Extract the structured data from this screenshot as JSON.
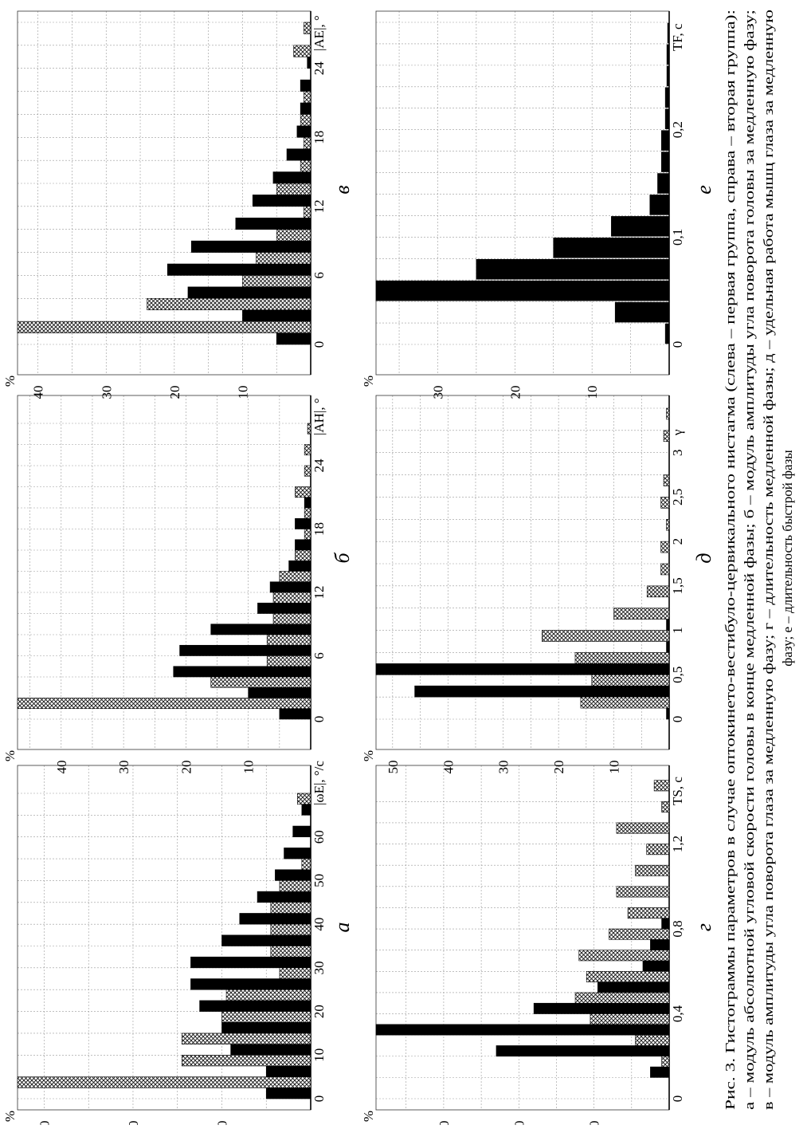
{
  "caption": {
    "lines": [
      "Рис. 3. Гистограммы параметров в случае оптокинето-вестибуло-цервикального нистагма (слева – первая группа, справа – вторая группа):",
      "а – модуль абсолютной угловой скорости головы в конце медленной фазы; б – модуль амплитуды угла поворота головы за медленную фазу;",
      "в – модуль амплитуды угла поворота глаза за медленную фазу; г – длительность медленной фазы; д – удельная работа мышц глаза за медленную",
      "фазу; е – длительность быстрой фазы"
    ]
  },
  "colors": {
    "group1": "#000000",
    "group2_pattern": "crosshatch",
    "grid": "#888888"
  },
  "chart_data": [
    {
      "id": "a",
      "label": "а",
      "type": "bar",
      "ylabel": "%",
      "xlabel": "|ωE|, °/с",
      "xlim": [
        0,
        70
      ],
      "ylim": [
        0,
        33
      ],
      "grid": true,
      "xticks": [
        0,
        10,
        20,
        30,
        40,
        50,
        60
      ],
      "xtick_labels": [
        "0",
        "10",
        "20",
        "30",
        "40",
        "50",
        "60"
      ],
      "yticks": [
        10,
        20,
        30
      ],
      "ytick_labels": [
        "10",
        "20",
        "30"
      ],
      "bin_width": 5,
      "series": [
        {
          "style": "solid",
          "x": [
            0,
            5,
            10,
            15,
            20,
            25,
            30,
            35,
            40,
            45,
            50,
            55,
            60,
            65
          ],
          "values": [
            5,
            5,
            9,
            10,
            12.5,
            13.5,
            13.5,
            10,
            8,
            6,
            4,
            3,
            2,
            1
          ]
        },
        {
          "style": "hatch",
          "x": [
            0,
            5,
            10,
            15,
            20,
            25,
            30,
            35,
            40,
            45,
            50,
            55,
            60,
            65
          ],
          "values": [
            36,
            14.5,
            14.5,
            10,
            9.5,
            3.5,
            4.5,
            4.5,
            4.5,
            3.5,
            1,
            0,
            0,
            1.5
          ]
        }
      ]
    },
    {
      "id": "b",
      "label": "б",
      "type": "bar",
      "ylabel": "%",
      "xlabel": "|AH|, °",
      "xlim": [
        0,
        28
      ],
      "ylim": [
        0,
        47
      ],
      "grid": true,
      "xticks": [
        0,
        6,
        12,
        18,
        24
      ],
      "xtick_labels": [
        "0",
        "6",
        "12",
        "18",
        "24"
      ],
      "yticks": [
        10,
        20,
        30,
        40
      ],
      "ytick_labels": [
        "10",
        "20",
        "30",
        "40"
      ],
      "bin_width": 2,
      "series": [
        {
          "style": "solid",
          "x": [
            0,
            2,
            4,
            6,
            8,
            10,
            12,
            14,
            16,
            18,
            20,
            22,
            24,
            26
          ],
          "values": [
            5,
            10,
            22,
            21,
            16,
            8.5,
            6.5,
            3.5,
            2.5,
            2.5,
            1,
            0,
            0,
            0
          ]
        },
        {
          "style": "hatch",
          "x": [
            0,
            2,
            4,
            6,
            8,
            10,
            12,
            14,
            16,
            18,
            20,
            22,
            24,
            26
          ],
          "values": [
            50,
            16,
            7,
            7,
            6,
            6,
            5,
            2.5,
            1,
            1,
            2.5,
            1,
            1,
            0.5
          ]
        }
      ]
    },
    {
      "id": "c",
      "label": "в",
      "type": "bar",
      "ylabel": "%",
      "xlabel": "|AE|, °",
      "xlim": [
        0,
        28
      ],
      "ylim": [
        0,
        43
      ],
      "grid": true,
      "xticks": [
        0,
        6,
        12,
        18,
        24
      ],
      "xtick_labels": [
        "0",
        "6",
        "12",
        "18",
        "24"
      ],
      "yticks": [
        10,
        20,
        30,
        40
      ],
      "ytick_labels": [
        "10",
        "20",
        "30",
        "40"
      ],
      "bin_width": 2,
      "series": [
        {
          "style": "solid",
          "x": [
            0,
            2,
            4,
            6,
            8,
            10,
            12,
            14,
            16,
            18,
            20,
            22,
            24,
            26
          ],
          "values": [
            5,
            10,
            18,
            21,
            17.5,
            11,
            8.5,
            5.5,
            3.5,
            2,
            1.5,
            1.5,
            0.5,
            0
          ]
        },
        {
          "style": "hatch",
          "x": [
            0,
            2,
            4,
            6,
            8,
            10,
            12,
            14,
            16,
            18,
            20,
            22,
            24,
            26
          ],
          "values": [
            45,
            24,
            10,
            8,
            5,
            1,
            5,
            1.5,
            1,
            1.5,
            1,
            0,
            2.5,
            1
          ]
        }
      ]
    },
    {
      "id": "d",
      "label": "г",
      "type": "bar",
      "ylabel": "%",
      "xlabel": "TS, с",
      "xlim": [
        0,
        1.45
      ],
      "ylim": [
        0,
        39
      ],
      "grid": true,
      "xticks": [
        0,
        0.4,
        0.8,
        1.2
      ],
      "xtick_labels": [
        "0",
        "0,4",
        "0,8",
        "1,2"
      ],
      "yticks": [
        10,
        20,
        30
      ],
      "ytick_labels": [
        "10",
        "20",
        "30"
      ],
      "bin_width": 0.1,
      "series": [
        {
          "style": "solid",
          "x": [
            0.1,
            0.2,
            0.3,
            0.4,
            0.5,
            0.6,
            0.7,
            0.8
          ],
          "values": [
            2.5,
            23,
            39,
            18,
            9.5,
            3.5,
            2.5,
            1
          ]
        },
        {
          "style": "hatch",
          "x": [
            0.1,
            0.2,
            0.3,
            0.4,
            0.5,
            0.6,
            0.7,
            0.8,
            0.9,
            1.0,
            1.1,
            1.2,
            1.3,
            1.4
          ],
          "values": [
            1,
            4.5,
            10.5,
            12.5,
            11,
            12,
            8,
            5.5,
            7,
            4.5,
            3,
            7,
            1,
            2
          ]
        }
      ]
    },
    {
      "id": "e",
      "label": "д",
      "type": "bar",
      "ylabel": "%",
      "xlabel": "γ",
      "xlim": [
        0,
        3.5
      ],
      "ylim": [
        0,
        53
      ],
      "grid": true,
      "xticks": [
        0,
        0.5,
        1,
        1.5,
        2,
        2.5,
        3
      ],
      "xtick_labels": [
        "0",
        "0,5",
        "1",
        "1,5",
        "2",
        "2,5",
        "3"
      ],
      "yticks": [
        10,
        20,
        30,
        40,
        50
      ],
      "ytick_labels": [
        "10",
        "20",
        "30",
        "40",
        "50"
      ],
      "bin_width": 0.25,
      "series": [
        {
          "style": "solid",
          "x": [
            0,
            0.25,
            0.5,
            0.75,
            1.0
          ],
          "values": [
            0.5,
            46,
            53,
            0.5,
            0.5
          ]
        },
        {
          "style": "hatch",
          "x": [
            0,
            0.25,
            0.5,
            0.75,
            1.0,
            1.25,
            1.5,
            1.75,
            2.0,
            2.25,
            2.5,
            2.75,
            3.0,
            3.25
          ],
          "values": [
            16,
            14,
            17,
            23,
            10,
            4,
            1.5,
            1.5,
            0.5,
            1.5,
            1,
            0,
            1,
            0.5
          ]
        }
      ]
    },
    {
      "id": "f",
      "label": "е",
      "type": "bar",
      "ylabel": "%",
      "xlabel": "TF, с",
      "xlim": [
        0,
        0.3
      ],
      "ylim": [
        0,
        38
      ],
      "grid": true,
      "xticks": [
        0,
        0.1,
        0.2
      ],
      "xtick_labels": [
        "0",
        "0,1",
        "0,2"
      ],
      "yticks": [
        10,
        20,
        30
      ],
      "ytick_labels": [
        "10",
        "20",
        "30"
      ],
      "bin_width": 0.02,
      "series": [
        {
          "style": "solid",
          "x": [
            0,
            0.02,
            0.04,
            0.06,
            0.08,
            0.1,
            0.12,
            0.14,
            0.16,
            0.18,
            0.2,
            0.22,
            0.24,
            0.26,
            0.28
          ],
          "values": [
            0.5,
            7,
            38,
            25,
            15,
            7.5,
            2.5,
            1.5,
            1,
            1,
            0.5,
            0.5,
            0.3,
            0.3,
            0.2
          ]
        }
      ]
    }
  ]
}
